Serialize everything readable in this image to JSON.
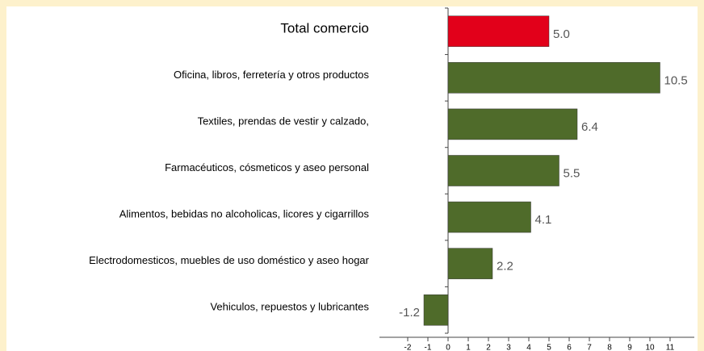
{
  "chart_data": {
    "type": "barh",
    "categories": [
      "Total comercio",
      "Oficina, libros, ferretería y otros productos",
      "Textiles, prendas de vestir y calzado,",
      "Farmacéuticos, cósmeticos y aseo personal",
      "Alimentos, bebidas no alcoholicas, licores y cigarrillos",
      "Electrodomesticos, muebles de uso doméstico y aseo hogar",
      "Vehiculos, repuestos y lubricantes"
    ],
    "values": [
      5.0,
      10.5,
      6.4,
      5.5,
      4.1,
      2.2,
      -1.2
    ],
    "value_labels": [
      "5.0",
      "10.5",
      "6.4",
      "5.5",
      "4.1",
      "2.2",
      "-1.2"
    ],
    "colors": [
      "#e2001a",
      "#4f6b2a",
      "#4f6b2a",
      "#4f6b2a",
      "#4f6b2a",
      "#4f6b2a",
      "#4f6b2a"
    ],
    "xlim": [
      -3.4,
      12.2
    ],
    "xticks": [
      -2,
      -1,
      0,
      1,
      2,
      3,
      4,
      5,
      6,
      7,
      8,
      9,
      10,
      11
    ]
  }
}
